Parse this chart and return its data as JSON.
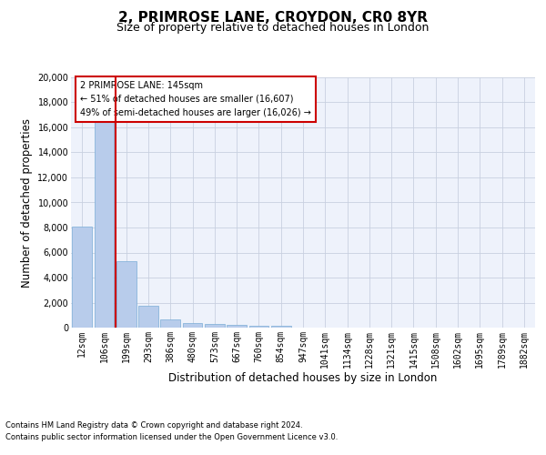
{
  "title_line1": "2, PRIMROSE LANE, CROYDON, CR0 8YR",
  "title_line2": "Size of property relative to detached houses in London",
  "xlabel": "Distribution of detached houses by size in London",
  "ylabel": "Number of detached properties",
  "categories": [
    "12sqm",
    "106sqm",
    "199sqm",
    "293sqm",
    "386sqm",
    "480sqm",
    "573sqm",
    "667sqm",
    "760sqm",
    "854sqm",
    "947sqm",
    "1041sqm",
    "1134sqm",
    "1228sqm",
    "1321sqm",
    "1415sqm",
    "1508sqm",
    "1602sqm",
    "1695sqm",
    "1789sqm",
    "1882sqm"
  ],
  "values": [
    8100,
    16500,
    5300,
    1750,
    650,
    350,
    280,
    210,
    175,
    130,
    0,
    0,
    0,
    0,
    0,
    0,
    0,
    0,
    0,
    0,
    0
  ],
  "bar_color": "#b8cceb",
  "bar_edge_color": "#7aadd6",
  "vline_x": 1.5,
  "vline_color": "#cc0000",
  "annotation_text": "2 PRIMROSE LANE: 145sqm\n← 51% of detached houses are smaller (16,607)\n49% of semi-detached houses are larger (16,026) →",
  "annotation_box_color": "#ffffff",
  "annotation_box_edge": "#cc0000",
  "ylim": [
    0,
    20000
  ],
  "yticks": [
    0,
    2000,
    4000,
    6000,
    8000,
    10000,
    12000,
    14000,
    16000,
    18000,
    20000
  ],
  "background_color": "#eef2fb",
  "footer_line1": "Contains HM Land Registry data © Crown copyright and database right 2024.",
  "footer_line2": "Contains public sector information licensed under the Open Government Licence v3.0.",
  "grid_color": "#c8d0e0",
  "title_fontsize": 11,
  "subtitle_fontsize": 9,
  "axis_label_fontsize": 8.5,
  "tick_fontsize": 7,
  "annotation_fontsize": 7,
  "footer_fontsize": 6
}
